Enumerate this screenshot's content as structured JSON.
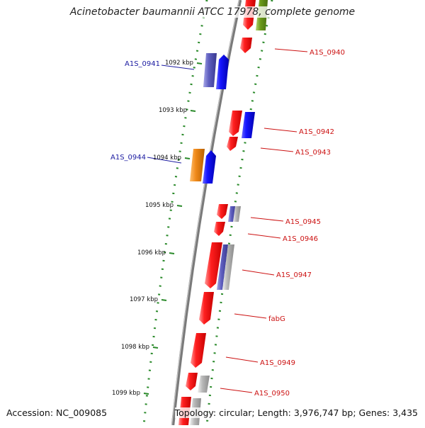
{
  "title": "Acinetobacter baumannii ATCC 17978, complete genome",
  "footer": {
    "accession": "Accession: NC_009085",
    "summary": "Topology: circular; Length: 3,976,747 bp; Genes: 3,435"
  },
  "kbp_ticks": [
    {
      "label": "1092 kbp",
      "kbp": 1092
    },
    {
      "label": "1093 kbp",
      "kbp": 1093
    },
    {
      "label": "1094 kbp",
      "kbp": 1094
    },
    {
      "label": "1095 kbp",
      "kbp": 1095
    },
    {
      "label": "1096 kbp",
      "kbp": 1096
    },
    {
      "label": "1097 kbp",
      "kbp": 1097
    },
    {
      "label": "1098 kbp",
      "kbp": 1098
    },
    {
      "label": "1099 kbp",
      "kbp": 1099
    }
  ],
  "gene_labels_left": [
    {
      "text": "A1S_0941",
      "color": "#1a1aa0"
    },
    {
      "text": "A1S_0944",
      "color": "#1a1aa0"
    }
  ],
  "gene_labels_right": [
    {
      "text": "A1S_0940",
      "color": "#cc1111"
    },
    {
      "text": "A1S_0942",
      "color": "#cc1111"
    },
    {
      "text": "A1S_0943",
      "color": "#cc1111"
    },
    {
      "text": "A1S_0945",
      "color": "#cc1111"
    },
    {
      "text": "A1S_0946",
      "color": "#cc1111"
    },
    {
      "text": "A1S_0947",
      "color": "#cc1111"
    },
    {
      "text": "fabG",
      "color": "#cc1111"
    },
    {
      "text": "A1S_0949",
      "color": "#cc1111"
    },
    {
      "text": "A1S_0950",
      "color": "#cc1111"
    }
  ],
  "colors": {
    "backbone": "#7a7a7a",
    "dotted_ring": "#2a8a2a",
    "cds": "#ee1111",
    "blue_feature": "#1010ee",
    "slate_feature": "#5a5ab8",
    "orange_feature": "#f08a1a",
    "olive_feature": "#6a9a1a",
    "gray_feature": "#aaaaaa"
  }
}
